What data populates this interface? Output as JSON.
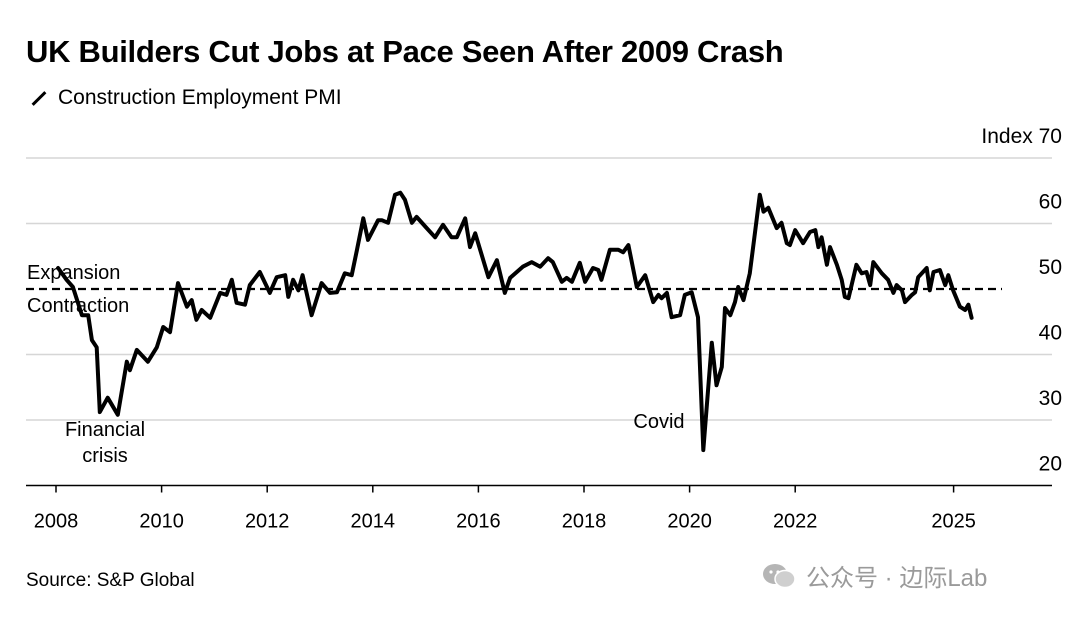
{
  "title": "UK Builders Cut Jobs at Pace Seen After 2009 Crash",
  "source": "Source: S&P Global",
  "watermark": "公众号 · 边际Lab",
  "chart_data": {
    "type": "line",
    "title": "UK Builders Cut Jobs at Pace Seen After 2009 Crash",
    "legend": "top-left",
    "grid": true,
    "ylabel": "Index",
    "ylim": [
      20,
      70
    ],
    "yticks": [
      20,
      30,
      40,
      50,
      60,
      70
    ],
    "ytick_labels": [
      "20",
      "30",
      "40",
      "50",
      "60",
      "Index 70"
    ],
    "xticks": [
      2008,
      2010,
      2012,
      2014,
      2016,
      2018,
      2020,
      2022,
      2025
    ],
    "xtick_labels": [
      "2008",
      "2010",
      "2012",
      "2014",
      "2016",
      "2018",
      "2020",
      "2022",
      "2025"
    ],
    "reference_line": {
      "value": 50,
      "style": "dashed",
      "label_above": "Expansion",
      "label_below": "Contraction"
    },
    "annotations": [
      {
        "text": "Financial crisis",
        "x": 2009.0,
        "y": 30
      },
      {
        "text": "Covid",
        "x": 2019.4,
        "y": 27
      }
    ],
    "series": [
      {
        "name": "Construction Employment PMI",
        "color": "#000000",
        "x": [
          2008.04,
          2008.2,
          2008.32,
          2008.49,
          2008.61,
          2008.68,
          2008.77,
          2008.83,
          2008.98,
          2009.17,
          2009.34,
          2009.4,
          2009.53,
          2009.74,
          2009.91,
          2010.03,
          2010.16,
          2010.31,
          2010.48,
          2010.57,
          2010.66,
          2010.76,
          2010.92,
          2011.11,
          2011.23,
          2011.33,
          2011.42,
          2011.58,
          2011.67,
          2011.86,
          2012.05,
          2012.18,
          2012.34,
          2012.4,
          2012.49,
          2012.59,
          2012.67,
          2012.84,
          2013.03,
          2013.19,
          2013.32,
          2013.47,
          2013.6,
          2013.7,
          2013.82,
          2013.91,
          2014.1,
          2014.17,
          2014.29,
          2014.42,
          2014.52,
          2014.61,
          2014.74,
          2014.83,
          2015.02,
          2015.18,
          2015.33,
          2015.49,
          2015.59,
          2015.75,
          2015.84,
          2015.94,
          2016.19,
          2016.35,
          2016.5,
          2016.6,
          2016.84,
          2017.01,
          2017.17,
          2017.32,
          2017.41,
          2017.58,
          2017.67,
          2017.77,
          2017.92,
          2018.02,
          2018.17,
          2018.27,
          2018.33,
          2018.49,
          2018.65,
          2018.74,
          2018.84,
          2019.0,
          2019.16,
          2019.31,
          2019.41,
          2019.47,
          2019.57,
          2019.66,
          2019.82,
          2019.91,
          2020.04,
          2020.16,
          2020.26,
          2020.42,
          2020.51,
          2020.61,
          2020.67,
          2020.77,
          2020.86,
          2020.92,
          2021.02,
          2021.14,
          2021.33,
          2021.4,
          2021.49,
          2021.65,
          2021.74,
          2021.84,
          2021.9,
          2022.0,
          2022.15,
          2022.28,
          2022.38,
          2022.44,
          2022.5,
          2022.6,
          2022.66,
          2022.79,
          2022.88,
          2022.94,
          2023.01,
          2023.16,
          2023.26,
          2023.35,
          2023.42,
          2023.48,
          2023.64,
          2023.76,
          2023.86,
          2023.92,
          2024.02,
          2024.08,
          2024.21,
          2024.27,
          2024.33,
          2024.49,
          2024.55,
          2024.62,
          2024.74,
          2024.84,
          2024.9,
          2024.99,
          2025.12,
          2025.22,
          2025.28,
          2025.34
        ],
        "y": [
          53.2,
          51.4,
          50.3,
          46.0,
          46.0,
          42.2,
          41.1,
          31.2,
          33.4,
          30.8,
          38.9,
          37.6,
          40.7,
          38.9,
          41.1,
          44.2,
          43.4,
          50.9,
          47.3,
          48.3,
          45.3,
          46.8,
          45.6,
          49.4,
          49.1,
          51.4,
          47.9,
          47.6,
          50.6,
          52.6,
          49.4,
          51.8,
          52.1,
          48.8,
          51.4,
          49.8,
          52.1,
          46.0,
          50.9,
          49.4,
          49.5,
          52.4,
          52.1,
          56.0,
          60.8,
          57.5,
          60.5,
          60.5,
          60.1,
          64.4,
          64.7,
          63.6,
          60.1,
          61.0,
          59.3,
          57.9,
          59.8,
          57.9,
          57.9,
          60.8,
          56.4,
          58.5,
          51.8,
          54.4,
          49.4,
          51.7,
          53.4,
          54.1,
          53.4,
          54.7,
          54.1,
          51.1,
          51.7,
          51.1,
          54.0,
          51.1,
          53.2,
          52.9,
          51.4,
          56.0,
          56.0,
          55.6,
          56.7,
          50.3,
          52.1,
          48.0,
          49.1,
          48.6,
          49.4,
          45.7,
          46.0,
          49.1,
          49.5,
          45.7,
          25.4,
          41.8,
          35.3,
          38.1,
          47.1,
          46.0,
          48.0,
          50.3,
          48.3,
          52.4,
          64.4,
          61.8,
          62.4,
          59.3,
          60.1,
          57.0,
          56.7,
          59.0,
          57.0,
          58.7,
          59.0,
          56.4,
          57.9,
          53.7,
          56.4,
          53.7,
          51.4,
          48.8,
          48.6,
          53.7,
          52.4,
          52.6,
          50.6,
          54.1,
          52.4,
          51.4,
          49.4,
          50.6,
          49.8,
          48.0,
          49.1,
          49.5,
          51.8,
          53.2,
          49.8,
          52.6,
          52.9,
          50.6,
          52.1,
          49.8,
          47.3,
          46.8,
          47.6,
          45.6
        ]
      }
    ]
  }
}
